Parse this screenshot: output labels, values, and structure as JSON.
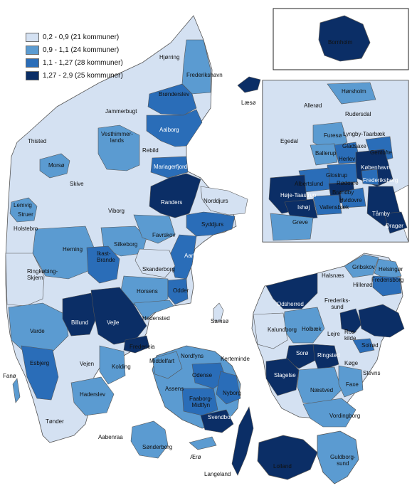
{
  "legend": [
    {
      "label": "0,2 - 0,9 (21 kommuner)",
      "color": "#d4e1f2"
    },
    {
      "label": "0,9 - 1,1 (24 kommuner)",
      "color": "#5b9bd1"
    },
    {
      "label": "1,1 - 1,27 (28 kommuner)",
      "color": "#2a6db8"
    },
    {
      "label": "1,27 - 2,9 (25 kommuner)",
      "color": "#0b2e66"
    }
  ],
  "main_labels": {
    "hjorring": "Hjørring",
    "frederikshavn": "Frederikshavn",
    "laeso": "Læsø",
    "bronderslev": "Brønderslev",
    "jammerbugt": "Jammerbugt",
    "thisted": "Thisted",
    "aalborg": "Aalborg",
    "vesthimmerlands": "Vesthimmer-\nlands",
    "rebild": "Rebild",
    "morso": "Morsø",
    "mariagerfjord": "Mariagerfjord",
    "skive": "Skive",
    "lemvig": "Lemvig",
    "randers": "Randers",
    "norddjurs": "Norddjurs",
    "viborg": "Viborg",
    "struer": "Struer",
    "holstebro": "Holstebro",
    "syddjurs": "Syddjurs",
    "favrskov": "Favrskov",
    "herning": "Herning",
    "silkeborg": "Silkeborg",
    "ikast_brande": "Ikast-\nBrande",
    "aarhus": "Aarhus",
    "ringkobing_skjern": "Ringkøbing-\nSkjern",
    "skanderborg": "Skanderborg",
    "horsens": "Horsens",
    "odder": "Odder",
    "samso": "Samsø",
    "billund": "Billund",
    "vejle": "Vejle",
    "hedensted": "Hedensted",
    "varde": "Varde",
    "fredericia": "Fredericia",
    "middelfart": "Middelfart",
    "nordfyns": "Nordfyns",
    "kerteminde": "Kerteminde",
    "esbjerg": "Esbjerg",
    "vejen": "Vejen",
    "kolding": "Kolding",
    "odense": "Odense",
    "assens": "Assens",
    "nyborg": "Nyborg",
    "faaborg_midtfyn": "Faaborg-\nMidtfyn",
    "fano": "Fanø",
    "haderslev": "Haderslev",
    "svendborg": "Svendborg",
    "tonder": "Tønder",
    "aabenraa": "Aabenraa",
    "sonderborg": "Sønderborg",
    "aero": "Ærø",
    "langeland": "Langeland",
    "lolland": "Lolland",
    "guldborgsund": "Guldborg-\nsund",
    "vordingborg": "Vordingborg",
    "naestved": "Næstved",
    "faxe": "Faxe",
    "stevns": "Stevns",
    "slagelse": "Slagelse",
    "soro": "Sorø",
    "ringsted": "Ringsted",
    "koge": "Køge",
    "kalundborg": "Kalundborg",
    "holbaek": "Holbæk",
    "lejre": "Lejre",
    "roskilde": "Ros-\nkilde",
    "solrod": "Solrød",
    "odsherred": "Odsherred",
    "halsnaes": "Halsnæs",
    "gribskov": "Gribskov",
    "helsingor": "Helsingør",
    "hillerod": "Hillerød",
    "fredensborg": "Fredensborg",
    "frederikssund": "Frederiks-\nsund"
  },
  "inset_labels": {
    "bornholm": "Bornholm",
    "horsholm": "Hørsholm",
    "allerod": "Allerød",
    "rudersdal": "Rudersdal",
    "egedal": "Egedal",
    "furesø": "Furesø",
    "lyngby_taarbaek": "Lyngby-Taarbæk",
    "gladsaxe": "Gladsaxe",
    "gentofte": "Gentofte",
    "ballerup": "Ballerup",
    "herlev": "Herlev",
    "kobenhavn": "København",
    "glostrup": "Glostrup",
    "frederiksberg": "Frederiksberg",
    "albertslund": "Albertslund",
    "rodovre": "Rødovre",
    "brondby": "Brøndby",
    "hoje_taastrup": "Høje-Taastrup",
    "hvidovre": "Hvidovre",
    "ishoj": "Ishøj",
    "vallensbaek": "Vallensbæk",
    "taarnby": "Tårnby",
    "greve": "Greve",
    "dragor": "Dragør"
  }
}
